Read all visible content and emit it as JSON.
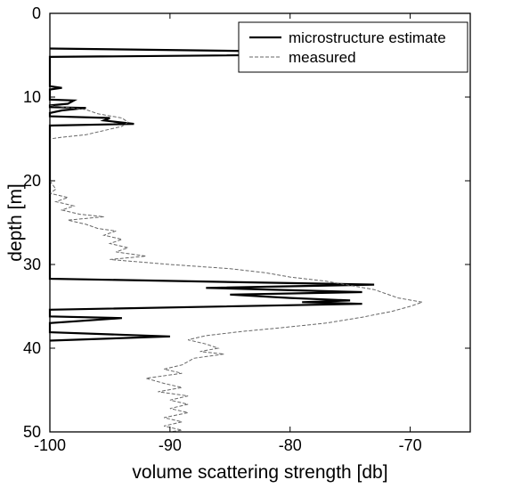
{
  "chart_data": {
    "type": "line",
    "xlabel": "volume scattering strength [db]",
    "ylabel": "depth [m]",
    "xlim": [
      -100,
      -65
    ],
    "ylim": [
      0,
      50
    ],
    "y_inverted": true,
    "xticks": [
      -100,
      -90,
      -80,
      -70
    ],
    "yticks": [
      0,
      10,
      20,
      30,
      40,
      50
    ],
    "grid": false,
    "legend_position": "top-right",
    "series": [
      {
        "name": "microstructure estimate",
        "style": "solid",
        "color": "#000000",
        "points": [
          [
            -100,
            4.2
          ],
          [
            -67,
            4.8
          ],
          [
            -100,
            5.2
          ],
          [
            -100,
            8.7
          ],
          [
            -99,
            8.9
          ],
          [
            -100,
            9.1
          ],
          [
            -100,
            10.3
          ],
          [
            -98,
            10.4
          ],
          [
            -98.5,
            10.8
          ],
          [
            -100,
            11.0
          ],
          [
            -100,
            11.2
          ],
          [
            -97,
            11.3
          ],
          [
            -99,
            11.6
          ],
          [
            -100,
            11.9
          ],
          [
            -100,
            12.3
          ],
          [
            -95,
            12.5
          ],
          [
            -95.5,
            12.8
          ],
          [
            -93,
            13.2
          ],
          [
            -100,
            13.4
          ],
          [
            -100,
            31.7
          ],
          [
            -73,
            32.4
          ],
          [
            -87,
            32.8
          ],
          [
            -74,
            33.3
          ],
          [
            -85,
            33.6
          ],
          [
            -80,
            34.0
          ],
          [
            -75,
            34.3
          ],
          [
            -79,
            34.5
          ],
          [
            -74,
            34.7
          ],
          [
            -100,
            35.4
          ],
          [
            -100,
            36.2
          ],
          [
            -94,
            36.4
          ],
          [
            -100,
            37.0
          ],
          [
            -100,
            38.1
          ],
          [
            -90,
            38.6
          ],
          [
            -100,
            39.1
          ]
        ]
      },
      {
        "name": "measured",
        "style": "dashed",
        "color": "#666666",
        "points": [
          [
            -100,
            11.0
          ],
          [
            -97,
            11.5
          ],
          [
            -96,
            12.0
          ],
          [
            -94,
            12.5
          ],
          [
            -93.5,
            13.0
          ],
          [
            -94,
            13.5
          ],
          [
            -95.5,
            14.0
          ],
          [
            -97,
            14.5
          ],
          [
            -99,
            14.8
          ],
          [
            -100,
            15.0
          ],
          [
            -100,
            20.0
          ],
          [
            -99.5,
            21.0
          ],
          [
            -100,
            21.5
          ],
          [
            -98.5,
            22.0
          ],
          [
            -99.5,
            22.5
          ],
          [
            -98,
            23.0
          ],
          [
            -99,
            23.5
          ],
          [
            -97.5,
            24.0
          ],
          [
            -95.5,
            24.3
          ],
          [
            -98.5,
            24.7
          ],
          [
            -97,
            25.2
          ],
          [
            -96,
            25.7
          ],
          [
            -94.5,
            26.0
          ],
          [
            -95.5,
            26.5
          ],
          [
            -94,
            27.0
          ],
          [
            -95,
            27.5
          ],
          [
            -93.5,
            28.0
          ],
          [
            -94.5,
            28.5
          ],
          [
            -92,
            29.0
          ],
          [
            -95,
            29.4
          ],
          [
            -90,
            30.0
          ],
          [
            -85,
            30.5
          ],
          [
            -82,
            31.0
          ],
          [
            -80,
            31.5
          ],
          [
            -77,
            32.0
          ],
          [
            -75,
            32.5
          ],
          [
            -73,
            33.0
          ],
          [
            -72,
            33.5
          ],
          [
            -71,
            34.0
          ],
          [
            -69,
            34.5
          ],
          [
            -70,
            35.0
          ],
          [
            -71.5,
            35.6
          ],
          [
            -74,
            36.3
          ],
          [
            -77,
            37.0
          ],
          [
            -81,
            37.6
          ],
          [
            -84,
            38.0
          ],
          [
            -87,
            38.5
          ],
          [
            -88.5,
            39.0
          ],
          [
            -87,
            39.5
          ],
          [
            -86,
            40.0
          ],
          [
            -87.5,
            40.4
          ],
          [
            -85.5,
            40.7
          ],
          [
            -88,
            41.2
          ],
          [
            -89,
            42.0
          ],
          [
            -90.5,
            42.5
          ],
          [
            -89,
            43.0
          ],
          [
            -92,
            43.6
          ],
          [
            -90.5,
            44.2
          ],
          [
            -89,
            44.7
          ],
          [
            -91,
            45.2
          ],
          [
            -88.5,
            45.7
          ],
          [
            -90,
            46.2
          ],
          [
            -88.5,
            46.7
          ],
          [
            -90,
            47.2
          ],
          [
            -88.5,
            47.7
          ],
          [
            -90.5,
            48.3
          ],
          [
            -89,
            48.8
          ],
          [
            -90.5,
            49.3
          ],
          [
            -89,
            49.8
          ],
          [
            -90,
            50.0
          ]
        ]
      }
    ]
  }
}
